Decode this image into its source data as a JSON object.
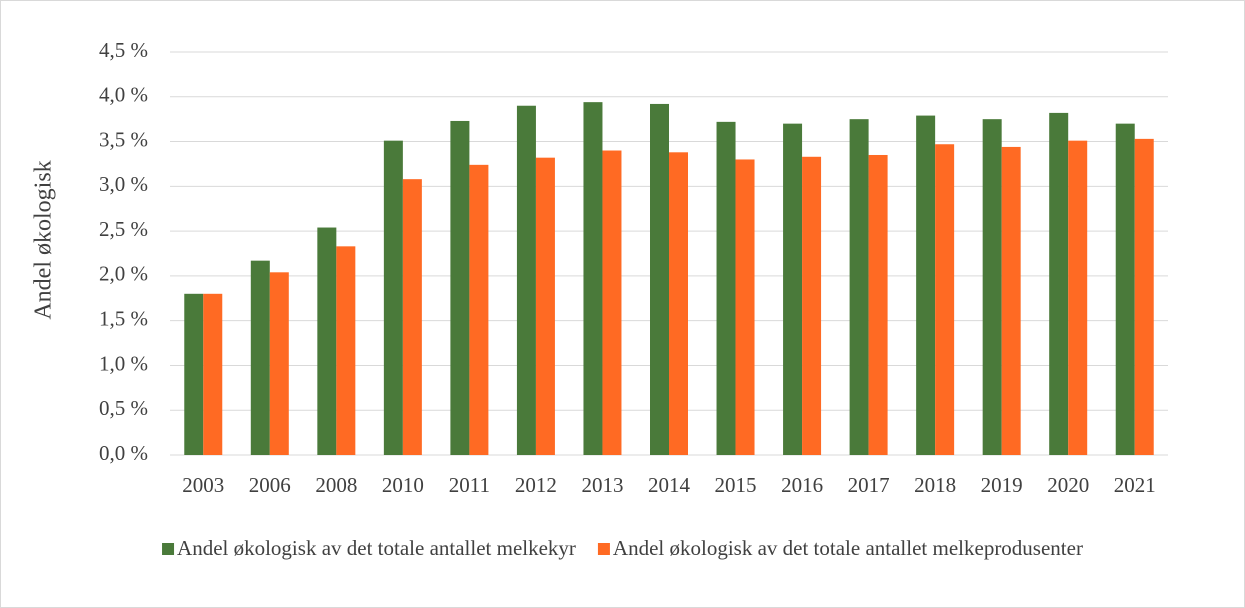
{
  "chart_data": {
    "type": "bar",
    "ylabel": "Andel økologisk",
    "categories": [
      "2003",
      "2006",
      "2008",
      "2010",
      "2011",
      "2012",
      "2013",
      "2014",
      "2015",
      "2016",
      "2017",
      "2018",
      "2019",
      "2020",
      "2021"
    ],
    "series": [
      {
        "name": "Andel økologisk av det totale antallet melkekyr",
        "color": "#4a7a3a",
        "values": [
          1.8,
          2.17,
          2.54,
          3.51,
          3.73,
          3.9,
          3.94,
          3.92,
          3.72,
          3.7,
          3.75,
          3.79,
          3.75,
          3.82,
          3.7
        ]
      },
      {
        "name": "Andel økologisk av det totale antallet melkeprodusenter",
        "color": "#ff6a23",
        "values": [
          1.8,
          2.04,
          2.33,
          3.08,
          3.24,
          3.32,
          3.4,
          3.38,
          3.3,
          3.33,
          3.35,
          3.47,
          3.44,
          3.51,
          3.53
        ]
      }
    ],
    "ylim": [
      0,
      4.5
    ],
    "yticks": [
      {
        "value": 0,
        "label": "0,0 %"
      },
      {
        "value": 0.5,
        "label": "0,5 %"
      },
      {
        "value": 1,
        "label": "1,0 %"
      },
      {
        "value": 1.5,
        "label": "1,5 %"
      },
      {
        "value": 2,
        "label": "2,0 %"
      },
      {
        "value": 2.5,
        "label": "2,5 %"
      },
      {
        "value": 3,
        "label": "3,0 %"
      },
      {
        "value": 3.5,
        "label": "3,5 %"
      },
      {
        "value": 4,
        "label": "4,0 %"
      },
      {
        "value": 4.5,
        "label": "4,5 %"
      }
    ],
    "grid": true,
    "legend": "bottom"
  }
}
